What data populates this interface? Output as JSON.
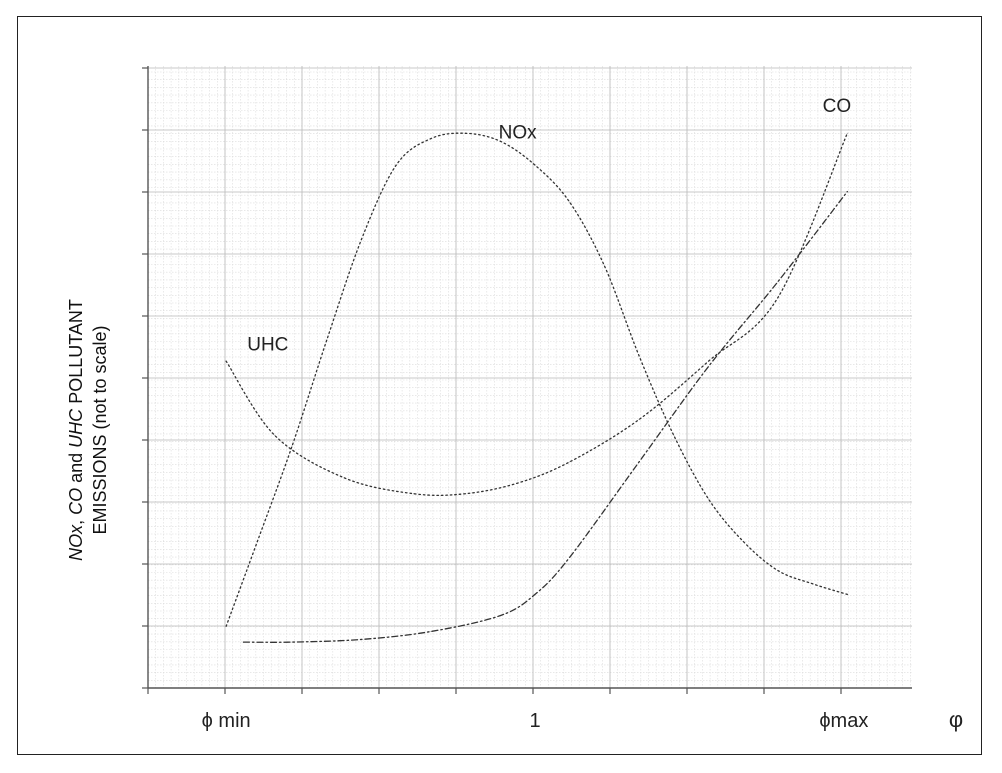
{
  "chart_data": {
    "type": "line",
    "xlabel": "φ",
    "ylabel_line1_parts": [
      {
        "text": "NOx",
        "italic": true
      },
      {
        "text": ", ",
        "italic": false
      },
      {
        "text": "CO",
        "italic": true
      },
      {
        "text": " and ",
        "italic": false
      },
      {
        "text": "UHC",
        "italic": true
      },
      {
        "text": " POLLUTANT",
        "italic": false
      }
    ],
    "ylabel_line2": "EMISSIONS (not to scale)",
    "x_ticks": [
      {
        "x": 0.11,
        "label": "ϕ min"
      },
      {
        "x": 1.0,
        "label": "1"
      },
      {
        "x": 1.89,
        "label": "ϕmax"
      }
    ],
    "xlim": [
      0,
      2
    ],
    "ylim": [
      0,
      1
    ],
    "grid": true,
    "series": [
      {
        "name": "NOx",
        "label_at": [
          0.95,
          0.98
        ],
        "x": [
          0.11,
          0.2,
          0.3,
          0.4,
          0.5,
          0.6,
          0.7,
          0.8,
          0.9,
          1.0,
          1.1,
          1.2,
          1.3,
          1.4,
          1.5,
          1.6,
          1.7,
          1.8,
          1.9
        ],
        "y": [
          0.06,
          0.22,
          0.4,
          0.6,
          0.79,
          0.93,
          0.98,
          0.99,
          0.975,
          0.93,
          0.86,
          0.74,
          0.57,
          0.42,
          0.3,
          0.22,
          0.165,
          0.14,
          0.12
        ]
      },
      {
        "name": "CO",
        "label_at": [
          1.87,
          1.03
        ],
        "x": [
          0.16,
          0.3,
          0.5,
          0.7,
          0.9,
          1.0,
          1.1,
          1.3,
          1.5,
          1.7,
          1.9
        ],
        "y": [
          0.03,
          0.03,
          0.035,
          0.05,
          0.08,
          0.12,
          0.19,
          0.37,
          0.55,
          0.71,
          0.88
        ]
      },
      {
        "name": "UHC",
        "label_at": [
          0.23,
          0.58
        ],
        "x": [
          0.11,
          0.25,
          0.45,
          0.65,
          0.8,
          0.95,
          1.1,
          1.3,
          1.5,
          1.7,
          1.9
        ],
        "y": [
          0.56,
          0.42,
          0.34,
          0.31,
          0.31,
          0.33,
          0.37,
          0.45,
          0.56,
          0.68,
          0.99
        ]
      }
    ]
  }
}
